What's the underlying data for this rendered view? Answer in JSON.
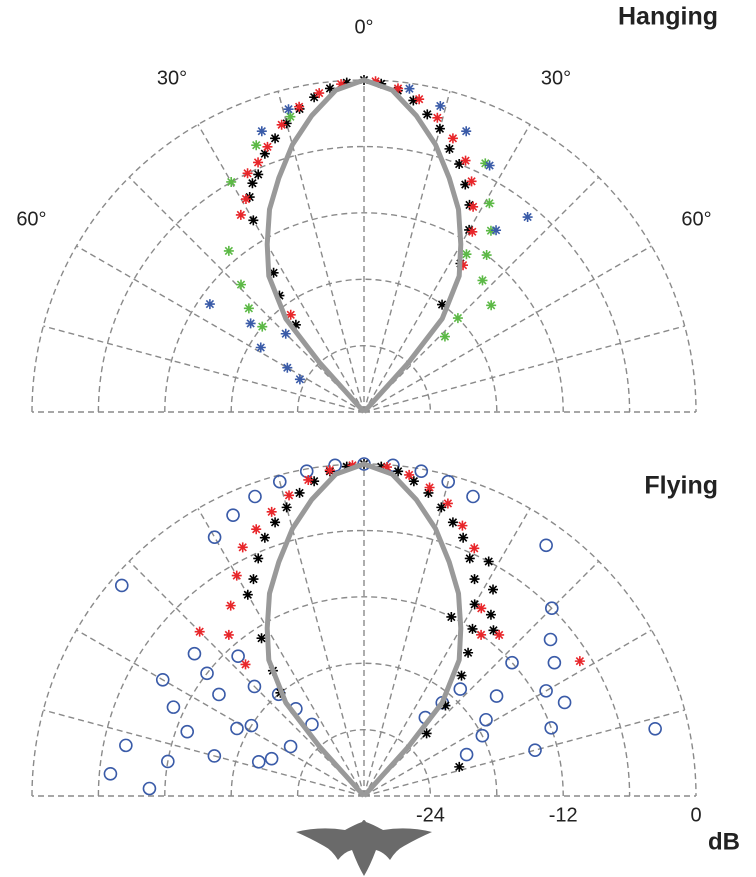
{
  "chart_data": [
    {
      "type": "polar",
      "title": "Hanging",
      "rlim": [
        -30,
        0
      ],
      "rgrid": [
        -24,
        -18,
        -12,
        -6,
        0
      ],
      "thetagrid": [
        -90,
        -75,
        -60,
        -45,
        -30,
        -15,
        0,
        15,
        30,
        45,
        60,
        75,
        90
      ],
      "thetaticks": [
        {
          "value": -60,
          "label": "60°"
        },
        {
          "value": -30,
          "label": "30°"
        },
        {
          "value": 0,
          "label": "0°"
        },
        {
          "value": 30,
          "label": "30°"
        },
        {
          "value": 60,
          "label": "60°"
        }
      ],
      "series": [
        {
          "marker": "asterisk",
          "color": "#000000",
          "theta": [
            -33,
            -30,
            -28,
            -26,
            -24,
            -21,
            -18,
            -15,
            -12,
            -9,
            -6,
            -3,
            0,
            3,
            6,
            9,
            12,
            15,
            18,
            21,
            24,
            27,
            30,
            -36,
            33,
            -38,
            36
          ],
          "values": [
            -15,
            -10,
            -8,
            -7,
            -6.5,
            -5,
            -4,
            -3,
            -2,
            -1.2,
            -0.6,
            -0.2,
            0,
            -0.3,
            -0.8,
            -1.5,
            -2.5,
            -3.5,
            -5,
            -6,
            -7.5,
            -9,
            -11,
            -17,
            -14,
            -20,
            -18
          ]
        },
        {
          "marker": "asterisk",
          "color": "#e8262a",
          "theta": [
            -32,
            -29,
            -26,
            -23,
            -20,
            -16,
            -12,
            -8,
            -4,
            2,
            6,
            10,
            14,
            18,
            22,
            25,
            28,
            31,
            -37,
            34
          ],
          "values": [
            -9,
            -8,
            -6,
            -5.5,
            -4.5,
            -3,
            -1.8,
            -0.9,
            -0.3,
            -0.1,
            -0.6,
            -1.3,
            -2.6,
            -4,
            -5.5,
            -7,
            -9,
            -11,
            -19,
            -14
          ]
        },
        {
          "marker": "asterisk",
          "color": "#5cb946",
          "theta": [
            -40,
            -44,
            -48,
            -50,
            -30,
            -22,
            -14,
            26,
            31,
            35,
            38,
            42,
            45,
            47,
            50,
            33
          ],
          "values": [
            -11,
            -14,
            -16,
            -18,
            -6,
            -4,
            -2.5,
            -5,
            -8,
            -10,
            -12,
            -14,
            -18,
            -20,
            -15,
            -13
          ]
        },
        {
          "marker": "asterisk",
          "color": "#3a5ba8",
          "theta": [
            -55,
            -52,
            -58,
            -63,
            -60,
            -45,
            -20,
            -14,
            8,
            14,
            20,
            27,
            36,
            40
          ],
          "values": [
            -13,
            -17,
            -19,
            -23.5,
            -22,
            -20,
            -3,
            -1.8,
            -0.5,
            -1.5,
            -3,
            -5,
            -9.7,
            -7
          ]
        },
        {
          "marker": "line",
          "color": "#999999",
          "theta": [
            -44,
            -42,
            -40,
            -35,
            -30,
            -25,
            -20,
            -15,
            -10,
            -5,
            0,
            5,
            10,
            15,
            20,
            25,
            30,
            35,
            40,
            42,
            44
          ],
          "values": [
            -30,
            -24,
            -19,
            -15,
            -12.5,
            -9.8,
            -7.5,
            -5,
            -2.8,
            -0.8,
            0,
            -0.8,
            -2.8,
            -5,
            -7.5,
            -9.8,
            -12.5,
            -15,
            -19,
            -24,
            -30
          ]
        }
      ]
    },
    {
      "type": "polar",
      "title": "Flying",
      "rlim": [
        -30,
        0
      ],
      "rgrid": [
        -24,
        -18,
        -12,
        -6,
        0
      ],
      "thetagrid": [
        -90,
        -75,
        -60,
        -45,
        -30,
        -15,
        0,
        15,
        30,
        45,
        60,
        75,
        90
      ],
      "rticks": [
        -24,
        -12,
        0
      ],
      "rlabel": "dB",
      "series": [
        {
          "marker": "circle",
          "color": "#3a5ba8",
          "theta": [
            -49,
            -88,
            -80,
            -75,
            -70,
            -65,
            -60,
            -55,
            -52,
            -50,
            -45,
            -42,
            -40,
            -38,
            -36,
            -62,
            -68,
            -72,
            -58,
            -56,
            -30,
            -25,
            -20,
            -15,
            -10,
            -5,
            0,
            5,
            10,
            15,
            20,
            77,
            36,
            45,
            50,
            55,
            60,
            65,
            70,
            75,
            48,
            53,
            58,
            63,
            68,
            42,
            40,
            38,
            -85,
            -78
          ],
          "values": [
            -1,
            -10.6,
            -12,
            -16,
            -13,
            -11,
            -9,
            -14,
            -12,
            -10,
            -16,
            -13,
            -18,
            -20,
            -22,
            -17,
            -21,
            -20,
            -18,
            -22,
            -3,
            -2,
            -1.2,
            -0.6,
            -0.2,
            0,
            0,
            0,
            -0.2,
            -0.6,
            -1.2,
            -3,
            -2,
            -6,
            -8,
            -9,
            -11,
            -10,
            -12,
            -14,
            -12,
            -15,
            -17,
            -18,
            -20,
            -17,
            -19,
            -21,
            -7,
            -8
          ]
        },
        {
          "marker": "asterisk",
          "color": "#000000",
          "theta": [
            -30,
            -27,
            -24,
            -21,
            -18,
            -15,
            -12,
            -9,
            -6,
            -3,
            0,
            3,
            6,
            9,
            12,
            15,
            18,
            21,
            24,
            27,
            30,
            33,
            36,
            39,
            -33,
            -36,
            -39,
            42,
            45,
            28,
            32,
            35,
            38,
            26,
            73
          ],
          "values": [
            -9,
            -8,
            -6.5,
            -5,
            -4,
            -3,
            -2,
            -1.2,
            -0.5,
            -0.2,
            0,
            -0.2,
            -0.5,
            -1.2,
            -2,
            -3,
            -4,
            -5,
            -6.5,
            -8,
            -10,
            -12,
            -14,
            -16,
            -13,
            -16,
            -18,
            -19,
            -22,
            -6,
            -8,
            -10,
            -11,
            -12,
            -21
          ]
        },
        {
          "marker": "asterisk",
          "color": "#e8262a",
          "theta": [
            -35,
            -30,
            -26,
            -22,
            -18,
            -14,
            -10,
            -6,
            -2,
            4,
            8,
            12,
            16,
            20,
            24,
            -45,
            -40,
            -42,
            32,
            36,
            40,
            58
          ],
          "values": [
            -9,
            -7,
            -5,
            -4,
            -3,
            -2,
            -1,
            -0.4,
            -0.1,
            -0.2,
            -0.7,
            -1.5,
            -2.5,
            -4,
            -5.5,
            -9,
            -11,
            -14,
            -10,
            -12,
            -11,
            -7
          ]
        },
        {
          "marker": "line",
          "color": "#999999",
          "theta": [
            -44,
            -42,
            -40,
            -35,
            -30,
            -25,
            -20,
            -15,
            -10,
            -5,
            0,
            5,
            10,
            15,
            20,
            25,
            30,
            35,
            40,
            42,
            44
          ],
          "values": [
            -30,
            -24,
            -19,
            -15,
            -12.5,
            -9.8,
            -7.5,
            -5,
            -2.8,
            -0.8,
            0,
            -0.8,
            -2.8,
            -5,
            -7.5,
            -9.8,
            -12.5,
            -15,
            -19,
            -24,
            -30
          ]
        }
      ]
    }
  ]
}
